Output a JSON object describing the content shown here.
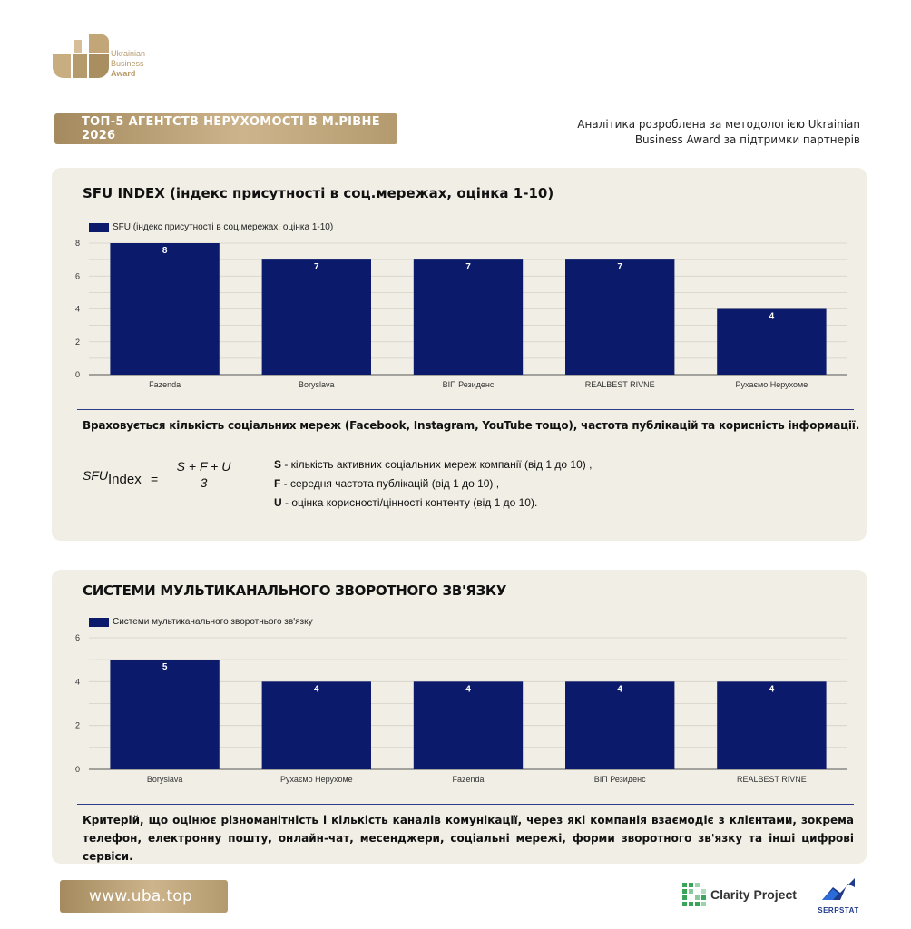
{
  "logo": {
    "line1": "Ukrainian",
    "line2": "Business",
    "line3": "Award"
  },
  "header": {
    "title": "ТОП-5 АГЕНТСТВ НЕРУХОМОСТІ В М.РІВНЕ 2026",
    "analytics_line1": "Аналітика розроблена за методологією Ukrainian",
    "analytics_line2": "Business Award за підтримки партнерів"
  },
  "section1": {
    "title": "SFU INDEX (індекс присутності в соц.мережах, оцінка 1-10)",
    "description": "Враховується кількість соціальних мереж (Facebook, Instagram, YouTube тощо), частота публікацій та корисність інформації.",
    "formula": {
      "lhs": "SFU",
      "sub": "Index",
      "eq": "=",
      "numerator": "S + F + U",
      "denominator": "3"
    },
    "vars": [
      {
        "key": "S",
        "text": " - кількість активних соціальних мереж компанії (від 1 до 10) ,"
      },
      {
        "key": "F",
        "text": " - середня частота публікацій (від 1 до 10) ,"
      },
      {
        "key": "U",
        "text": " - оцінка корисності/цінності контенту (від 1 до 10)."
      }
    ]
  },
  "section2": {
    "title": "СИСТЕМИ МУЛЬТИКАНАЛЬНОГО ЗВОРОТНОГО ЗВ'ЯЗКУ",
    "description": "Критерій, що оцінює різноманітність і кількість каналів комунікації, через які компанія взаємодіє з клієнтами, зокрема телефон, електронну пошту, онлайн-чат, месенджери, соціальні мережі, форми зворотного зв'язку та інші цифрові сервіси."
  },
  "footer": {
    "site": "www.uba.top",
    "partner1": "Clarity Project",
    "partner2": "SERPSTAT"
  },
  "colors": {
    "bar": "#0b1a6b",
    "gold": "#b79a6a",
    "card": "#f1eee5"
  },
  "chart_data": [
    {
      "type": "bar",
      "categories": [
        "Fazenda",
        "Boryslava",
        "ВІП Резиденс",
        "REALBEST RIVNE",
        "Рухаємо Нерухоме"
      ],
      "series": [
        {
          "name": "SFU (індекс присутності в соц.мережах, оцінка 1-10)",
          "values": [
            8,
            7,
            7,
            7,
            4
          ]
        }
      ],
      "ylim": [
        0,
        8
      ],
      "yticks": [
        0,
        2,
        4,
        6,
        8
      ],
      "grid": true,
      "legend": "top-left"
    },
    {
      "type": "bar",
      "categories": [
        "Boryslava",
        "Рухаємо Нерухоме",
        "Fazenda",
        "ВІП Резиденс",
        "REALBEST RIVNE"
      ],
      "series": [
        {
          "name": "Системи мультиканального зворотнього зв'язку",
          "values": [
            5,
            4,
            4,
            4,
            4
          ]
        }
      ],
      "ylim": [
        0,
        6
      ],
      "yticks": [
        0,
        2,
        4,
        6
      ],
      "grid": true,
      "legend": "top-left"
    }
  ]
}
